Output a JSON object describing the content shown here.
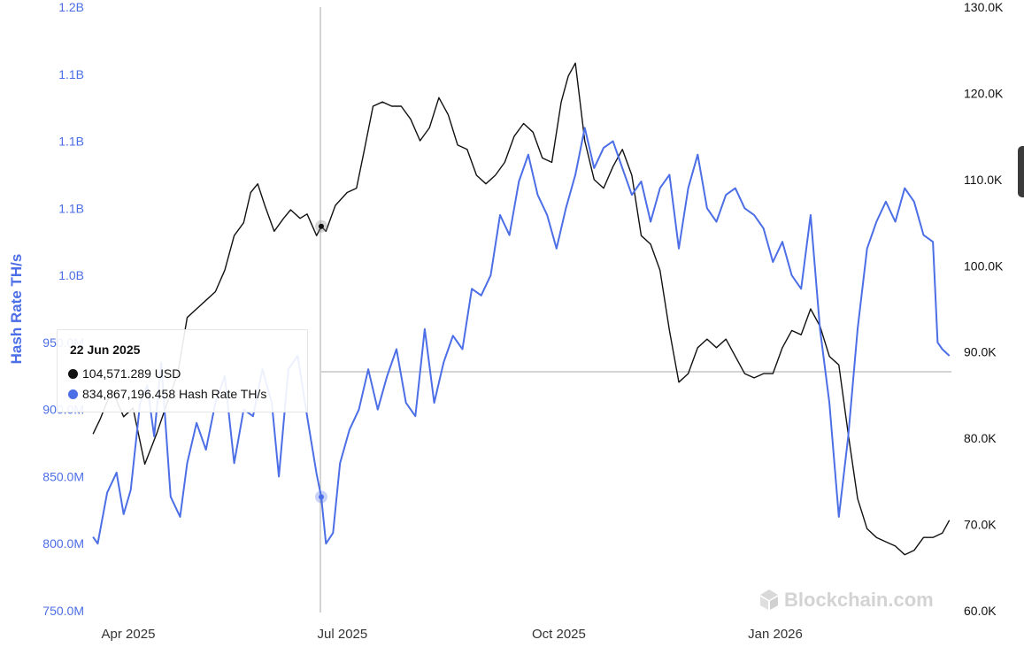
{
  "chart_data": {
    "type": "line",
    "ylabel_left": "Hash Rate TH/s",
    "ylabel_right": "",
    "left_axis": {
      "ticks": [
        "1.2B",
        "1.1B",
        "1.1B",
        "1.1B",
        "1.0B",
        "950.0M",
        "900.0M",
        "850.0M",
        "800.0M",
        "750.0M"
      ],
      "ylim": [
        750000000,
        1200000000
      ]
    },
    "right_axis": {
      "ticks": [
        "130.0K",
        "120.0K",
        "110.0K",
        "100.0K",
        "90.0K",
        "80.0K",
        "70.0K",
        "60.0K"
      ],
      "ylim": [
        60000,
        130000
      ]
    },
    "x_ticks": [
      "Apr 2025",
      "Jul 2025",
      "Oct 2025",
      "Jan 2026"
    ],
    "series": [
      {
        "name": "USD",
        "axis": "right",
        "color": "#111111",
        "points": [
          [
            "2025-03-17",
            80500
          ],
          [
            "2025-03-20",
            82200
          ],
          [
            "2025-03-25",
            85600
          ],
          [
            "2025-03-30",
            82500
          ],
          [
            "2025-04-03",
            83500
          ],
          [
            "2025-04-08",
            77000
          ],
          [
            "2025-04-13",
            80500
          ],
          [
            "2025-04-18",
            84500
          ],
          [
            "2025-04-22",
            87500
          ],
          [
            "2025-04-26",
            94000
          ],
          [
            "2025-04-30",
            95000
          ],
          [
            "2025-05-04",
            96000
          ],
          [
            "2025-05-08",
            97000
          ],
          [
            "2025-05-12",
            99500
          ],
          [
            "2025-05-16",
            103500
          ],
          [
            "2025-05-20",
            105000
          ],
          [
            "2025-05-23",
            108500
          ],
          [
            "2025-05-26",
            109500
          ],
          [
            "2025-05-29",
            107000
          ],
          [
            "2025-06-02",
            104000
          ],
          [
            "2025-06-06",
            105500
          ],
          [
            "2025-06-09",
            106500
          ],
          [
            "2025-06-13",
            105500
          ],
          [
            "2025-06-16",
            106000
          ],
          [
            "2025-06-20",
            103500
          ],
          [
            "2025-06-22",
            104571
          ],
          [
            "2025-06-24",
            104000
          ],
          [
            "2025-06-28",
            107000
          ],
          [
            "2025-07-03",
            108500
          ],
          [
            "2025-07-07",
            109000
          ],
          [
            "2025-07-10",
            113000
          ],
          [
            "2025-07-14",
            118500
          ],
          [
            "2025-07-18",
            119000
          ],
          [
            "2025-07-22",
            118500
          ],
          [
            "2025-07-26",
            118500
          ],
          [
            "2025-07-30",
            117000
          ],
          [
            "2025-08-03",
            114500
          ],
          [
            "2025-08-07",
            116000
          ],
          [
            "2025-08-11",
            119500
          ],
          [
            "2025-08-15",
            117500
          ],
          [
            "2025-08-19",
            114000
          ],
          [
            "2025-08-23",
            113500
          ],
          [
            "2025-08-27",
            110500
          ],
          [
            "2025-08-31",
            109500
          ],
          [
            "2025-09-04",
            110500
          ],
          [
            "2025-09-08",
            112000
          ],
          [
            "2025-09-12",
            115000
          ],
          [
            "2025-09-16",
            116500
          ],
          [
            "2025-09-20",
            115500
          ],
          [
            "2025-09-24",
            112500
          ],
          [
            "2025-09-28",
            112000
          ],
          [
            "2025-10-02",
            119000
          ],
          [
            "2025-10-05",
            122000
          ],
          [
            "2025-10-08",
            123500
          ],
          [
            "2025-10-12",
            114500
          ],
          [
            "2025-10-16",
            110000
          ],
          [
            "2025-10-20",
            109000
          ],
          [
            "2025-10-24",
            111500
          ],
          [
            "2025-10-28",
            113500
          ],
          [
            "2025-11-01",
            110500
          ],
          [
            "2025-11-05",
            103500
          ],
          [
            "2025-11-09",
            102500
          ],
          [
            "2025-11-13",
            99500
          ],
          [
            "2025-11-17",
            92500
          ],
          [
            "2025-11-21",
            86500
          ],
          [
            "2025-11-25",
            87500
          ],
          [
            "2025-11-29",
            90500
          ],
          [
            "2025-12-03",
            91500
          ],
          [
            "2025-12-07",
            90500
          ],
          [
            "2025-12-11",
            91500
          ],
          [
            "2025-12-15",
            89500
          ],
          [
            "2025-12-19",
            87500
          ],
          [
            "2025-12-23",
            87000
          ],
          [
            "2025-12-27",
            87500
          ],
          [
            "2025-12-31",
            87500
          ],
          [
            "2026-01-04",
            90500
          ],
          [
            "2026-01-08",
            92500
          ],
          [
            "2026-01-12",
            92000
          ],
          [
            "2026-01-16",
            95000
          ],
          [
            "2026-01-20",
            93000
          ],
          [
            "2026-01-24",
            89500
          ],
          [
            "2026-01-28",
            88500
          ],
          [
            "2026-02-01",
            80500
          ],
          [
            "2026-02-05",
            73000
          ],
          [
            "2026-02-09",
            69500
          ],
          [
            "2026-02-13",
            68500
          ],
          [
            "2026-02-17",
            68000
          ],
          [
            "2026-02-21",
            67500
          ],
          [
            "2026-02-25",
            66500
          ],
          [
            "2026-03-01",
            67000
          ],
          [
            "2026-03-05",
            68500
          ],
          [
            "2026-03-09",
            68500
          ],
          [
            "2026-03-13",
            69000
          ],
          [
            "2026-03-16",
            70500
          ]
        ]
      },
      {
        "name": "Hash Rate TH/s",
        "axis": "left",
        "color": "#4c6ee6",
        "points": [
          [
            "2025-03-17",
            805000000
          ],
          [
            "2025-03-19",
            800000000
          ],
          [
            "2025-03-23",
            838000000
          ],
          [
            "2025-03-27",
            853000000
          ],
          [
            "2025-03-30",
            822000000
          ],
          [
            "2025-04-02",
            840000000
          ],
          [
            "2025-04-06",
            905000000
          ],
          [
            "2025-04-09",
            918000000
          ],
          [
            "2025-04-12",
            880000000
          ],
          [
            "2025-04-15",
            935000000
          ],
          [
            "2025-04-19",
            835000000
          ],
          [
            "2025-04-23",
            820000000
          ],
          [
            "2025-04-26",
            860000000
          ],
          [
            "2025-04-30",
            890000000
          ],
          [
            "2025-05-04",
            870000000
          ],
          [
            "2025-05-08",
            905000000
          ],
          [
            "2025-05-12",
            925000000
          ],
          [
            "2025-05-16",
            860000000
          ],
          [
            "2025-05-20",
            900000000
          ],
          [
            "2025-05-24",
            895000000
          ],
          [
            "2025-05-28",
            930000000
          ],
          [
            "2025-06-01",
            905000000
          ],
          [
            "2025-06-04",
            850000000
          ],
          [
            "2025-06-08",
            930000000
          ],
          [
            "2025-06-12",
            940000000
          ],
          [
            "2025-06-16",
            895000000
          ],
          [
            "2025-06-20",
            852000000
          ],
          [
            "2025-06-22",
            834867196
          ],
          [
            "2025-06-24",
            800000000
          ],
          [
            "2025-06-27",
            808000000
          ],
          [
            "2025-06-30",
            860000000
          ],
          [
            "2025-07-04",
            885000000
          ],
          [
            "2025-07-08",
            900000000
          ],
          [
            "2025-07-12",
            930000000
          ],
          [
            "2025-07-16",
            900000000
          ],
          [
            "2025-07-20",
            925000000
          ],
          [
            "2025-07-24",
            945000000
          ],
          [
            "2025-07-28",
            905000000
          ],
          [
            "2025-08-01",
            895000000
          ],
          [
            "2025-08-05",
            960000000
          ],
          [
            "2025-08-09",
            905000000
          ],
          [
            "2025-08-13",
            935000000
          ],
          [
            "2025-08-17",
            955000000
          ],
          [
            "2025-08-21",
            945000000
          ],
          [
            "2025-08-25",
            990000000
          ],
          [
            "2025-08-29",
            985000000
          ],
          [
            "2025-09-02",
            1000000000
          ],
          [
            "2025-09-06",
            1045000000
          ],
          [
            "2025-09-10",
            1030000000
          ],
          [
            "2025-09-14",
            1070000000
          ],
          [
            "2025-09-18",
            1090000000
          ],
          [
            "2025-09-22",
            1060000000
          ],
          [
            "2025-09-26",
            1045000000
          ],
          [
            "2025-09-30",
            1020000000
          ],
          [
            "2025-10-04",
            1050000000
          ],
          [
            "2025-10-08",
            1075000000
          ],
          [
            "2025-10-12",
            1110000000
          ],
          [
            "2025-10-16",
            1080000000
          ],
          [
            "2025-10-20",
            1095000000
          ],
          [
            "2025-10-24",
            1100000000
          ],
          [
            "2025-10-28",
            1080000000
          ],
          [
            "2025-11-01",
            1060000000
          ],
          [
            "2025-11-05",
            1070000000
          ],
          [
            "2025-11-09",
            1040000000
          ],
          [
            "2025-11-13",
            1065000000
          ],
          [
            "2025-11-17",
            1075000000
          ],
          [
            "2025-11-21",
            1020000000
          ],
          [
            "2025-11-25",
            1065000000
          ],
          [
            "2025-11-29",
            1090000000
          ],
          [
            "2025-12-03",
            1050000000
          ],
          [
            "2025-12-07",
            1040000000
          ],
          [
            "2025-12-11",
            1060000000
          ],
          [
            "2025-12-15",
            1065000000
          ],
          [
            "2025-12-19",
            1050000000
          ],
          [
            "2025-12-23",
            1045000000
          ],
          [
            "2025-12-27",
            1035000000
          ],
          [
            "2025-12-31",
            1010000000
          ],
          [
            "2026-01-04",
            1025000000
          ],
          [
            "2026-01-08",
            1000000000
          ],
          [
            "2026-01-12",
            990000000
          ],
          [
            "2026-01-16",
            1045000000
          ],
          [
            "2026-01-20",
            960000000
          ],
          [
            "2026-01-24",
            905000000
          ],
          [
            "2026-01-28",
            820000000
          ],
          [
            "2026-02-01",
            880000000
          ],
          [
            "2026-02-05",
            960000000
          ],
          [
            "2026-02-09",
            1020000000
          ],
          [
            "2026-02-13",
            1040000000
          ],
          [
            "2026-02-17",
            1055000000
          ],
          [
            "2026-02-21",
            1040000000
          ],
          [
            "2026-02-25",
            1065000000
          ],
          [
            "2026-03-01",
            1055000000
          ],
          [
            "2026-03-05",
            1030000000
          ],
          [
            "2026-03-09",
            1025000000
          ],
          [
            "2026-03-11",
            950000000
          ],
          [
            "2026-03-13",
            945000000
          ],
          [
            "2026-03-16",
            940000000
          ]
        ]
      }
    ],
    "crosshair": {
      "date": "2025-06-22",
      "usd": 104571.289,
      "hash_rate": 834867196.458
    },
    "tooltip": {
      "date": "22 Jun 2025",
      "usd_text": "104,571.289 USD",
      "hash_text": "834,867,196.458 Hash Rate TH/s"
    },
    "watermark": "Blockchain.com",
    "grid": false,
    "legend": "none"
  }
}
